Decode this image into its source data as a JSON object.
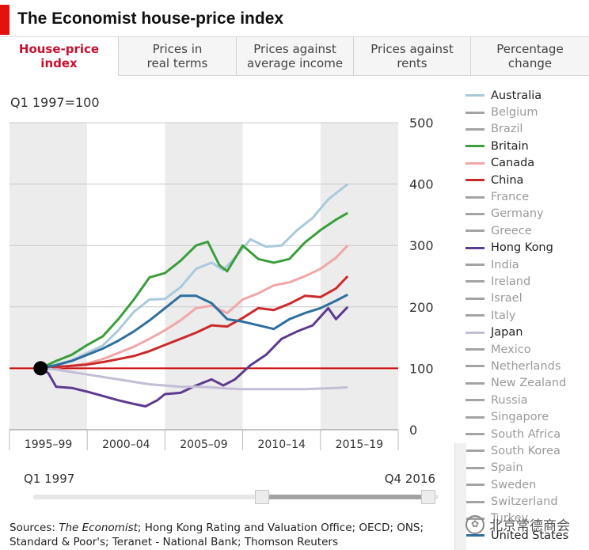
{
  "header": {
    "title": "The Economist house-price index"
  },
  "tabs": [
    {
      "label": "House-price\nindex",
      "active": true
    },
    {
      "label": "Prices in\nreal terms",
      "active": false
    },
    {
      "label": "Prices against\naverage income",
      "active": false
    },
    {
      "label": "Prices against\nrents",
      "active": false
    },
    {
      "label": "Percentage\nchange",
      "active": false
    }
  ],
  "subtitle": "Q1 1997=100",
  "slider": {
    "start_label": "Q1 1997",
    "end_label": "Q4 2016",
    "range_start_fraction": 0.58,
    "range_end_fraction": 1.0
  },
  "sources_prefix": "Sources: ",
  "sources_italic": "The Economist",
  "sources_rest": "; Hong Kong Rating and Valuation Office; OECD; ONS; Standard & Poor's; Teranet - National Bank; Thomson Reuters",
  "watermark": "北京常德商会",
  "colors": {
    "australia": "#a8cadb",
    "britain": "#3a9e3a",
    "canada": "#f2a6a6",
    "china": "#cc2a2a",
    "hong_kong": "#5c3a8f",
    "japan": "#c4bdd6",
    "united_states": "#2e6f9e",
    "inactive": "#a3a3a3",
    "baseline": "#cc0000"
  },
  "legend": [
    {
      "name": "Australia",
      "active": true,
      "color": "#a8cadb"
    },
    {
      "name": "Belgium",
      "active": false,
      "color": "#a3a3a3"
    },
    {
      "name": "Brazil",
      "active": false,
      "color": "#a3a3a3"
    },
    {
      "name": "Britain",
      "active": true,
      "color": "#3a9e3a"
    },
    {
      "name": "Canada",
      "active": true,
      "color": "#f2a6a6"
    },
    {
      "name": "China",
      "active": true,
      "color": "#cc2a2a"
    },
    {
      "name": "France",
      "active": false,
      "color": "#a3a3a3"
    },
    {
      "name": "Germany",
      "active": false,
      "color": "#a3a3a3"
    },
    {
      "name": "Greece",
      "active": false,
      "color": "#a3a3a3"
    },
    {
      "name": "Hong Kong",
      "active": true,
      "color": "#5c3a8f"
    },
    {
      "name": "India",
      "active": false,
      "color": "#a3a3a3"
    },
    {
      "name": "Ireland",
      "active": false,
      "color": "#a3a3a3"
    },
    {
      "name": "Israel",
      "active": false,
      "color": "#a3a3a3"
    },
    {
      "name": "Italy",
      "active": false,
      "color": "#a3a3a3"
    },
    {
      "name": "Japan",
      "active": true,
      "color": "#c4bdd6"
    },
    {
      "name": "Mexico",
      "active": false,
      "color": "#a3a3a3"
    },
    {
      "name": "Netherlands",
      "active": false,
      "color": "#a3a3a3"
    },
    {
      "name": "New Zealand",
      "active": false,
      "color": "#a3a3a3"
    },
    {
      "name": "Russia",
      "active": false,
      "color": "#a3a3a3"
    },
    {
      "name": "Singapore",
      "active": false,
      "color": "#a3a3a3"
    },
    {
      "name": "South Africa",
      "active": false,
      "color": "#a3a3a3"
    },
    {
      "name": "South Korea",
      "active": false,
      "color": "#a3a3a3"
    },
    {
      "name": "Spain",
      "active": false,
      "color": "#a3a3a3"
    },
    {
      "name": "Sweden",
      "active": false,
      "color": "#a3a3a3"
    },
    {
      "name": "Switzerland",
      "active": false,
      "color": "#a3a3a3"
    },
    {
      "name": "Turkey",
      "active": false,
      "color": "#a3a3a3"
    },
    {
      "name": "United States",
      "active": true,
      "color": "#2e6f9e"
    }
  ],
  "chart_data": {
    "type": "line",
    "title": "The Economist house-price index",
    "subtitle": "Q1 1997=100",
    "xlabel": "",
    "ylabel": "",
    "x_range": [
      1995,
      2020
    ],
    "ylim": [
      0,
      500
    ],
    "yticks": [
      0,
      100,
      200,
      300,
      400,
      500
    ],
    "x_bands": [
      {
        "label": "1995–99",
        "start": 1995,
        "end": 2000
      },
      {
        "label": "2000–04",
        "start": 2000,
        "end": 2005
      },
      {
        "label": "2005–09",
        "start": 2005,
        "end": 2010
      },
      {
        "label": "2010–14",
        "start": 2010,
        "end": 2015
      },
      {
        "label": "2015–19",
        "start": 2015,
        "end": 2020
      }
    ],
    "baseline": 100,
    "base_point": {
      "x": 1997.0,
      "y": 100
    },
    "grid": true,
    "legend_position": "right",
    "series": [
      {
        "name": "Australia",
        "color": "#a8cadb",
        "x": [
          1997.0,
          1998.0,
          1999.0,
          2000.0,
          2001.0,
          2002.0,
          2003.0,
          2004.0,
          2005.0,
          2006.0,
          2007.0,
          2008.0,
          2008.75,
          2009.5,
          2010.5,
          2011.5,
          2012.5,
          2013.5,
          2014.5,
          2015.5,
          2016.5,
          2016.75
        ],
        "y": [
          100,
          106,
          113,
          125,
          137,
          162,
          192,
          212,
          213,
          232,
          262,
          272,
          260,
          280,
          310,
          298,
          300,
          325,
          345,
          375,
          395,
          400
        ]
      },
      {
        "name": "Britain",
        "color": "#3a9e3a",
        "x": [
          1997.0,
          1998.0,
          1999.0,
          2000.0,
          2001.0,
          2002.0,
          2003.0,
          2004.0,
          2005.0,
          2006.0,
          2007.0,
          2007.75,
          2008.5,
          2009.0,
          2010.0,
          2011.0,
          2012.0,
          2013.0,
          2014.0,
          2015.0,
          2016.0,
          2016.75
        ],
        "y": [
          100,
          112,
          122,
          138,
          152,
          180,
          212,
          248,
          255,
          275,
          300,
          306,
          268,
          258,
          300,
          278,
          272,
          278,
          305,
          325,
          342,
          353
        ]
      },
      {
        "name": "Canada",
        "color": "#f2a6a6",
        "x": [
          1997.0,
          1998.0,
          1999.0,
          2000.0,
          2001.0,
          2002.0,
          2003.0,
          2004.0,
          2005.0,
          2006.0,
          2007.0,
          2008.0,
          2009.0,
          2010.0,
          2011.0,
          2012.0,
          2013.0,
          2014.0,
          2015.0,
          2016.0,
          2016.75
        ],
        "y": [
          100,
          101,
          104,
          108,
          115,
          125,
          135,
          148,
          162,
          178,
          198,
          202,
          190,
          212,
          222,
          235,
          240,
          250,
          262,
          280,
          300
        ]
      },
      {
        "name": "China",
        "color": "#cc2a2a",
        "x": [
          1997.0,
          1998.0,
          1999.0,
          2000.0,
          2001.0,
          2002.0,
          2003.0,
          2004.0,
          2005.0,
          2006.0,
          2007.0,
          2008.0,
          2009.0,
          2010.0,
          2011.0,
          2012.0,
          2013.0,
          2014.0,
          2015.0,
          2016.0,
          2016.75
        ],
        "y": [
          100,
          102,
          104,
          106,
          110,
          115,
          120,
          128,
          138,
          148,
          158,
          170,
          168,
          182,
          198,
          195,
          205,
          218,
          216,
          230,
          250
        ]
      },
      {
        "name": "Hong Kong",
        "color": "#5c3a8f",
        "x": [
          1997.0,
          1997.5,
          1998.0,
          1999.0,
          2000.0,
          2001.0,
          2002.0,
          2003.0,
          2003.75,
          2004.5,
          2005.0,
          2006.0,
          2007.0,
          2008.0,
          2008.75,
          2009.5,
          2010.5,
          2011.5,
          2012.5,
          2013.5,
          2014.5,
          2015.5,
          2016.0,
          2016.75
        ],
        "y": [
          100,
          92,
          70,
          68,
          62,
          55,
          48,
          42,
          38,
          48,
          58,
          60,
          72,
          82,
          72,
          82,
          105,
          122,
          148,
          160,
          170,
          198,
          180,
          200
        ]
      },
      {
        "name": "Japan",
        "color": "#c4bdd6",
        "x": [
          1997.0,
          1998.0,
          1999.0,
          2000.0,
          2001.0,
          2002.0,
          2003.0,
          2004.0,
          2005.0,
          2006.0,
          2007.0,
          2008.0,
          2009.0,
          2010.0,
          2011.0,
          2012.0,
          2013.0,
          2014.0,
          2015.0,
          2016.0,
          2016.75
        ],
        "y": [
          100,
          98,
          94,
          90,
          86,
          82,
          78,
          74,
          72,
          70,
          70,
          69,
          67,
          66,
          66,
          66,
          66,
          66,
          67,
          68,
          69
        ]
      },
      {
        "name": "United States",
        "color": "#2e6f9e",
        "x": [
          1997.0,
          1998.0,
          1999.0,
          2000.0,
          2001.0,
          2002.0,
          2003.0,
          2004.0,
          2005.0,
          2006.0,
          2007.0,
          2008.0,
          2009.0,
          2010.0,
          2011.0,
          2012.0,
          2013.0,
          2014.0,
          2015.0,
          2016.0,
          2016.75
        ],
        "y": [
          100,
          105,
          112,
          122,
          132,
          145,
          160,
          178,
          198,
          218,
          218,
          206,
          180,
          176,
          170,
          164,
          180,
          190,
          198,
          210,
          220
        ]
      }
    ]
  }
}
